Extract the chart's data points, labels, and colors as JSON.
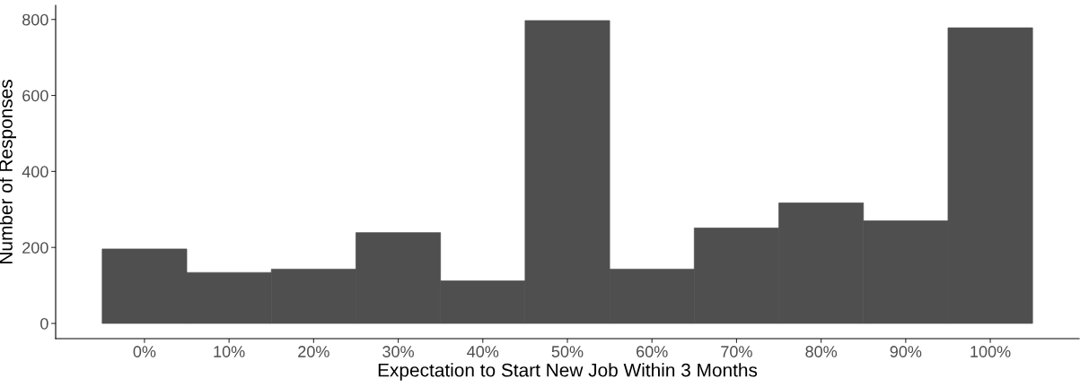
{
  "chart_data": {
    "type": "histogram",
    "xlabel": "Expectation to Start New Job Within 3 Months",
    "ylabel": "Number of Responses",
    "bins": [
      -5,
      5,
      15,
      25,
      35,
      45,
      55,
      65,
      75,
      85,
      95,
      105
    ],
    "values": [
      196,
      134,
      143,
      239,
      112,
      797,
      143,
      251,
      317,
      270,
      778
    ],
    "color": "#4f4f4f",
    "xlim": [
      -10.5,
      110.5
    ],
    "ylim": [
      -40,
      837
    ],
    "xticks": [
      {
        "value": 0,
        "label": "0%"
      },
      {
        "value": 10,
        "label": "10%"
      },
      {
        "value": 20,
        "label": "20%"
      },
      {
        "value": 30,
        "label": "30%"
      },
      {
        "value": 40,
        "label": "40%"
      },
      {
        "value": 50,
        "label": "50%"
      },
      {
        "value": 60,
        "label": "60%"
      },
      {
        "value": 70,
        "label": "70%"
      },
      {
        "value": 80,
        "label": "80%"
      },
      {
        "value": 90,
        "label": "90%"
      },
      {
        "value": 100,
        "label": "100%"
      }
    ],
    "yticks": [
      0,
      200,
      400,
      600,
      800
    ],
    "grid": false
  }
}
